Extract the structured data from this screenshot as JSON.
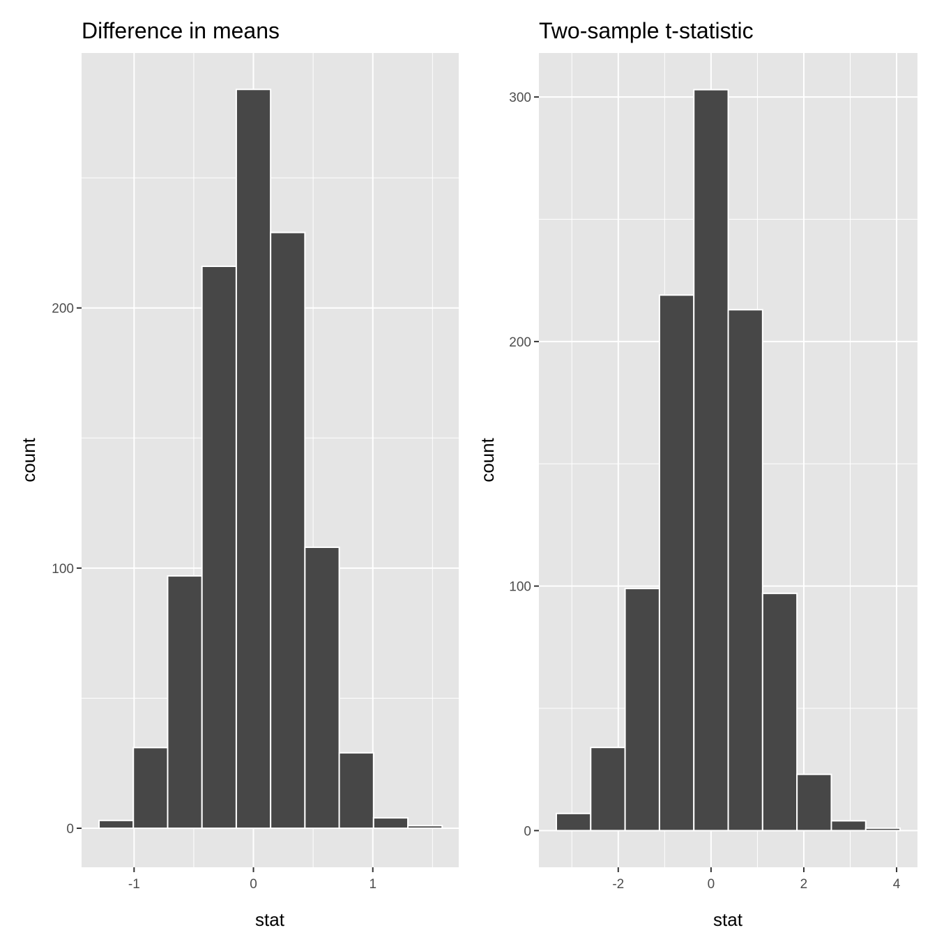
{
  "chart_data": [
    {
      "type": "bar",
      "title": "Difference in means",
      "xlabel": "stat",
      "ylabel": "count",
      "bin_width": 0.2875,
      "bins": [
        {
          "x_center": -1.15,
          "count": 3
        },
        {
          "x_center": -0.8625,
          "count": 31
        },
        {
          "x_center": -0.575,
          "count": 97
        },
        {
          "x_center": -0.2875,
          "count": 216
        },
        {
          "x_center": 0.0,
          "count": 284
        },
        {
          "x_center": 0.2875,
          "count": 229
        },
        {
          "x_center": 0.575,
          "count": 108
        },
        {
          "x_center": 0.8625,
          "count": 29
        },
        {
          "x_center": 1.15,
          "count": 4
        },
        {
          "x_center": 1.4375,
          "count": 1
        }
      ],
      "xlim": [
        -1.44,
        1.72
      ],
      "ylim": [
        -15,
        298
      ],
      "x_ticks": [
        -1,
        0,
        1
      ],
      "x_tick_labels": [
        "-1",
        "0",
        "1"
      ],
      "y_ticks": [
        0,
        100,
        200
      ],
      "y_tick_labels": [
        "0",
        "100",
        "200"
      ],
      "grid": true,
      "colors": {
        "bar_fill": "#474747",
        "bar_outline": "#ffffff",
        "panel": "#e5e5e5",
        "grid": "#ffffff"
      }
    },
    {
      "type": "bar",
      "title": "Two-sample t-statistic",
      "xlabel": "stat",
      "ylabel": "count",
      "bin_width": 0.741,
      "bins": [
        {
          "x_center": -2.964,
          "count": 7
        },
        {
          "x_center": -2.223,
          "count": 34
        },
        {
          "x_center": -1.482,
          "count": 99
        },
        {
          "x_center": -0.741,
          "count": 219
        },
        {
          "x_center": 0.0,
          "count": 303
        },
        {
          "x_center": 0.741,
          "count": 213
        },
        {
          "x_center": 1.482,
          "count": 97
        },
        {
          "x_center": 2.223,
          "count": 23
        },
        {
          "x_center": 2.964,
          "count": 4
        },
        {
          "x_center": 3.705,
          "count": 1
        }
      ],
      "xlim": [
        -3.71,
        4.45
      ],
      "ylim": [
        -15,
        318
      ],
      "x_ticks": [
        -2,
        0,
        2,
        4
      ],
      "x_tick_labels": [
        "-2",
        "0",
        "2",
        "4"
      ],
      "y_ticks": [
        0,
        100,
        200,
        300
      ],
      "y_tick_labels": [
        "0",
        "100",
        "200",
        "300"
      ],
      "grid": true,
      "colors": {
        "bar_fill": "#474747",
        "bar_outline": "#ffffff",
        "panel": "#e5e5e5",
        "grid": "#ffffff"
      }
    }
  ]
}
